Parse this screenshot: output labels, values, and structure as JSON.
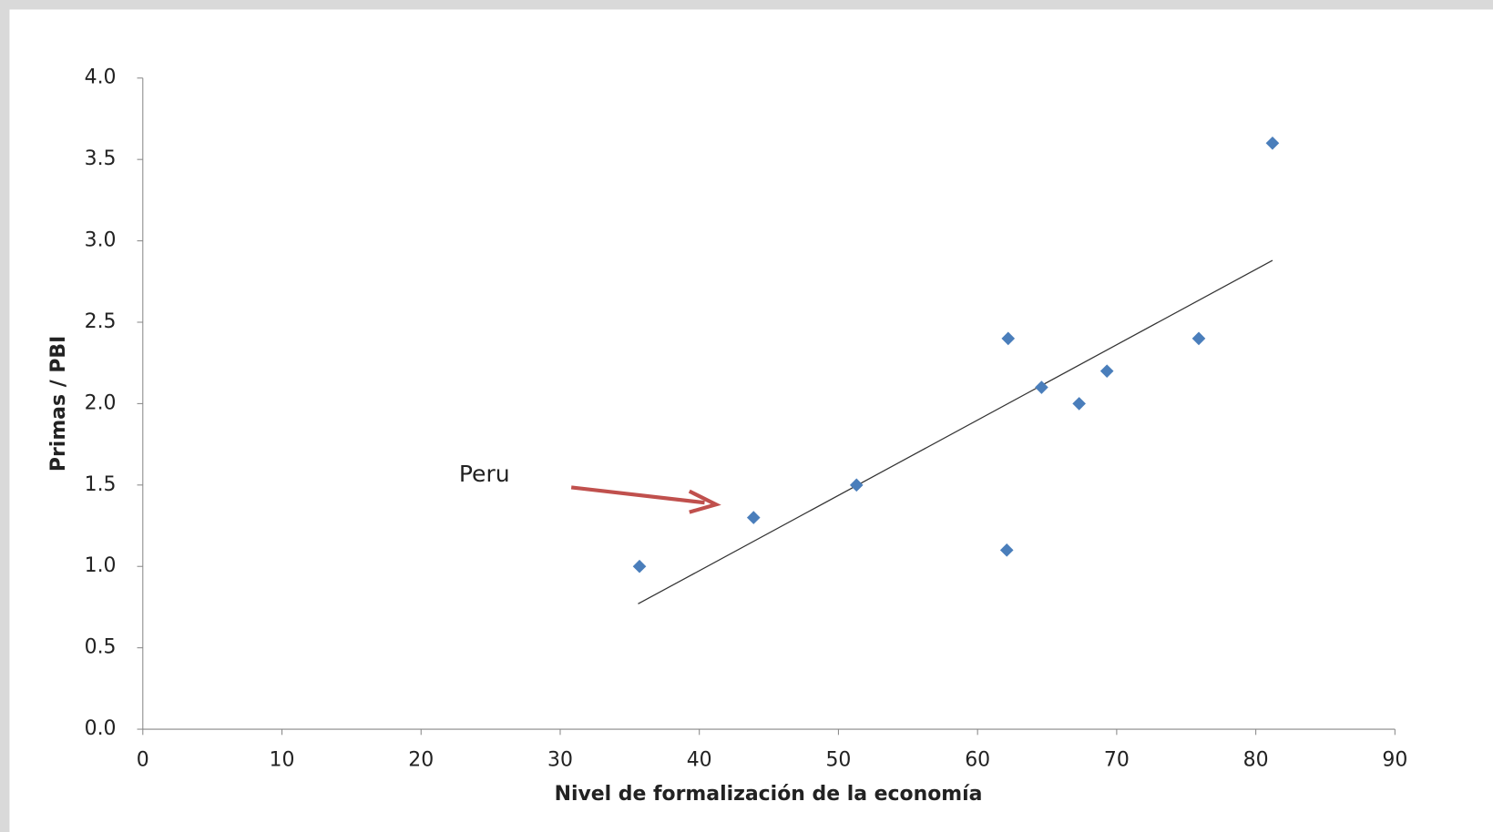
{
  "chart_data": {
    "type": "scatter",
    "x_label": "Nivel de formalización de la economía",
    "y_label": "Primas / PBI",
    "x": [
      35.7,
      43.9,
      51.3,
      62.1,
      62.2,
      64.6,
      67.3,
      69.3,
      75.9,
      81.2
    ],
    "values": [
      1.0,
      1.3,
      1.5,
      1.1,
      2.4,
      2.1,
      2.0,
      2.2,
      2.4,
      3.6
    ],
    "color": "#4a7ebb",
    "trendline": {
      "x": [
        35.6,
        81.2
      ],
      "values": [
        0.77,
        2.88
      ],
      "color": "#333333"
    },
    "annotation": "Peru",
    "xlim": [
      0,
      90
    ],
    "xticks": [
      0,
      10,
      20,
      30,
      40,
      50,
      60,
      70,
      80,
      90
    ],
    "ylim": [
      0,
      4
    ],
    "yticks": [
      {
        "value": 0,
        "label": "0.0"
      },
      {
        "value": 0.5,
        "label": "0.5"
      },
      {
        "value": 1,
        "label": "1.0"
      },
      {
        "value": 1.5,
        "label": "1.5"
      },
      {
        "value": 2,
        "label": "2.0"
      },
      {
        "value": 2.5,
        "label": "2.5"
      },
      {
        "value": 3,
        "label": "3.0"
      },
      {
        "value": 3.5,
        "label": "3.5"
      },
      {
        "value": 4,
        "label": "4.0"
      }
    ],
    "grid": false
  }
}
